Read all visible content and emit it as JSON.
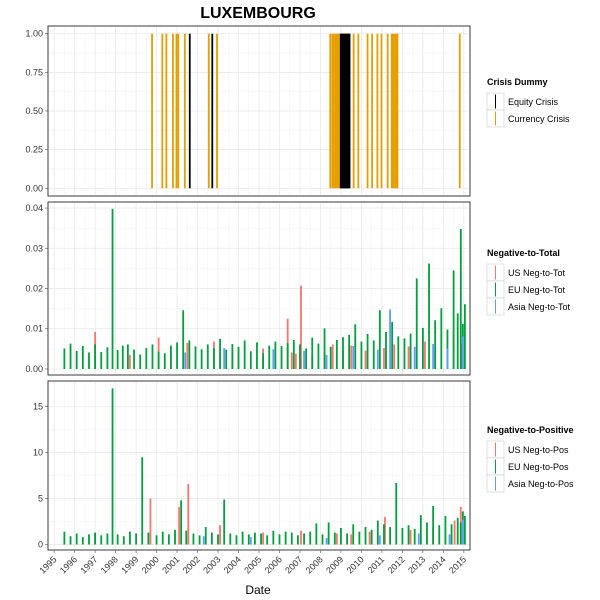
{
  "chart_data": {
    "type": "bar",
    "title": "LUXEMBOURG",
    "xlabel": "Date",
    "x_tick_labels": [
      "1995",
      "1996",
      "1997",
      "1998",
      "1999",
      "2000",
      "2001",
      "2002",
      "2003",
      "2004",
      "2005",
      "2006",
      "2007",
      "2008",
      "2009",
      "2010",
      "2011",
      "2012",
      "2013",
      "2014",
      "2015"
    ],
    "x_range": [
      1994.7,
      2015.3
    ],
    "panels": [
      {
        "legend_title": "Crisis Dummy",
        "ylim": [
          -0.05,
          1.05
        ],
        "y_ticks": [
          0,
          0.25,
          0.5,
          0.75,
          1
        ],
        "y_tick_labels": [
          "0.00",
          "0.25",
          "0.50",
          "0.75",
          "1.00"
        ],
        "series": [
          {
            "name": "Equity Crisis",
            "color": "#000000",
            "x": [
              2001.62,
              2002.72,
              2008.98,
              2009.02,
              2009.06,
              2009.1,
              2009.14,
              2009.18,
              2009.22,
              2009.26,
              2009.3,
              2009.34,
              2009.38,
              2009.42
            ],
            "values": [
              1,
              1,
              1,
              1,
              1,
              1,
              1,
              1,
              1,
              1,
              1,
              1,
              1,
              1
            ]
          },
          {
            "name": "Currency Crisis",
            "color": "#E69F00",
            "x": [
              1999.78,
              2000.28,
              2000.48,
              2000.8,
              2000.97,
              2001.06,
              2001.38,
              2002.55,
              2002.95,
              2008.48,
              2008.58,
              2008.66,
              2008.74,
              2008.82,
              2008.9,
              2009.62,
              2009.85,
              2010.3,
              2010.52,
              2010.78,
              2010.98,
              2011.28,
              2011.48,
              2011.56,
              2011.64,
              2011.7,
              2011.76,
              2014.8
            ],
            "values": [
              1,
              1,
              1,
              1,
              1,
              1,
              1,
              1,
              1,
              1,
              1,
              1,
              1,
              1,
              1,
              1,
              1,
              1,
              1,
              1,
              1,
              1,
              1,
              1,
              1,
              1,
              1,
              1
            ]
          }
        ]
      },
      {
        "legend_title": "Negative-to-Total",
        "ylim": [
          -0.0015,
          0.0415
        ],
        "y_ticks": [
          0,
          0.01,
          0.02,
          0.03,
          0.04
        ],
        "y_tick_labels": [
          "0.00",
          "0.01",
          "0.02",
          "0.03",
          "0.04"
        ],
        "series": [
          {
            "name": "US Neg-to-Tot",
            "color": "#F8766D",
            "x": [
              1997.0,
              1998.7,
              2000.1,
              2001.5,
              2002.8,
              2003.7,
              2005.2,
              2006.4,
              2006.6,
              2006.8,
              2007.05,
              2007.6,
              2008.2,
              2008.6,
              2009.1,
              2009.5,
              2010.2,
              2011.1,
              2011.6,
              2012.3,
              2013.1,
              2013.6,
              2014.5,
              2014.9
            ],
            "values": [
              0.0092,
              0.0035,
              0.0078,
              0.0065,
              0.0068,
              0.0042,
              0.0051,
              0.0125,
              0.0041,
              0.0038,
              0.0207,
              0.0035,
              0.0041,
              0.0061,
              0.0045,
              0.0058,
              0.0046,
              0.0052,
              0.0061,
              0.0056,
              0.0068,
              0.0045,
              0.0095,
              0.0063
            ]
          },
          {
            "name": "EU Neg-to-Tot",
            "color": "#00A03C",
            "x": [
              1995.5,
              1995.8,
              1996.1,
              1996.4,
              1996.7,
              1997.0,
              1997.3,
              1997.6,
              1997.85,
              1998.1,
              1998.35,
              1998.6,
              1998.9,
              1999.2,
              1999.5,
              1999.8,
              2000.1,
              2000.4,
              2000.7,
              2001.0,
              2001.3,
              2001.6,
              2001.9,
              2002.2,
              2002.5,
              2002.8,
              2003.1,
              2003.4,
              2003.7,
              2004.0,
              2004.3,
              2004.6,
              2004.9,
              2005.2,
              2005.5,
              2005.8,
              2006.1,
              2006.4,
              2006.7,
              2007.0,
              2007.3,
              2007.6,
              2007.9,
              2008.2,
              2008.5,
              2008.8,
              2009.1,
              2009.4,
              2009.7,
              2010.0,
              2010.3,
              2010.6,
              2010.9,
              2011.2,
              2011.5,
              2011.8,
              2012.1,
              2012.4,
              2012.7,
              2013.0,
              2013.3,
              2013.6,
              2013.9,
              2014.2,
              2014.5,
              2014.7,
              2014.85,
              2014.95,
              2015.05
            ],
            "values": [
              0.0051,
              0.0063,
              0.0045,
              0.0057,
              0.0041,
              0.0061,
              0.0042,
              0.0054,
              0.0398,
              0.0047,
              0.0058,
              0.0061,
              0.0048,
              0.0036,
              0.0052,
              0.0061,
              0.0043,
              0.0039,
              0.0058,
              0.0066,
              0.0146,
              0.0071,
              0.0056,
              0.0049,
              0.0061,
              0.0052,
              0.0075,
              0.0048,
              0.0062,
              0.0055,
              0.0071,
              0.0044,
              0.0066,
              0.0039,
              0.0058,
              0.0068,
              0.0057,
              0.0065,
              0.0072,
              0.0061,
              0.0051,
              0.0078,
              0.0063,
              0.0101,
              0.0055,
              0.0072,
              0.0079,
              0.0085,
              0.0111,
              0.0068,
              0.0087,
              0.0071,
              0.0146,
              0.0092,
              0.0117,
              0.0081,
              0.0076,
              0.0088,
              0.0225,
              0.0102,
              0.0262,
              0.0121,
              0.0151,
              0.0098,
              0.0245,
              0.0138,
              0.0348,
              0.0112,
              0.0161
            ]
          },
          {
            "name": "Asia Neg-to-Tot",
            "color": "#619CFF",
            "x": [
              2001.4,
              2003.3,
              2005.7,
              2007.2,
              2008.3,
              2009.6,
              2010.8,
              2011.4,
              2012.6,
              2013.5,
              2014.2,
              2014.95
            ],
            "values": [
              0.0041,
              0.0052,
              0.0049,
              0.0045,
              0.0035,
              0.0057,
              0.0048,
              0.0148,
              0.0055,
              0.0062,
              0.0051,
              0.0081
            ]
          }
        ]
      },
      {
        "legend_title": "Negative-to-Positive",
        "ylim": [
          -0.6,
          17.8
        ],
        "y_ticks": [
          0,
          5,
          10,
          15
        ],
        "y_tick_labels": [
          "0",
          "5",
          "10",
          "15"
        ],
        "series": [
          {
            "name": "US Neg-to-Pos",
            "color": "#F8766D",
            "x": [
              1997.0,
              1999.7,
              2001.1,
              2001.55,
              2003.1,
              2005.2,
              2007.05,
              2008.8,
              2009.5,
              2010.4,
              2011.15,
              2012.4,
              2013.5,
              2014.55,
              2014.85
            ],
            "values": [
              1.2,
              5.0,
              4.1,
              6.6,
              2.1,
              1.3,
              1.5,
              1.2,
              1.1,
              1.4,
              3.0,
              1.6,
              1.8,
              2.6,
              4.1
            ]
          },
          {
            "name": "EU Neg-to-Pos",
            "color": "#00A03C",
            "x": [
              1995.5,
              1995.8,
              1996.1,
              1996.4,
              1996.7,
              1997.0,
              1997.3,
              1997.6,
              1997.85,
              1998.1,
              1998.4,
              1998.7,
              1999.0,
              1999.3,
              1999.6,
              2000.0,
              2000.3,
              2000.6,
              2000.9,
              2001.2,
              2001.45,
              2001.8,
              2002.1,
              2002.4,
              2002.7,
              2003.0,
              2003.3,
              2003.6,
              2003.9,
              2004.2,
              2004.5,
              2004.8,
              2005.1,
              2005.4,
              2005.7,
              2006.0,
              2006.3,
              2006.6,
              2006.9,
              2007.2,
              2007.5,
              2007.8,
              2008.1,
              2008.4,
              2008.7,
              2009.0,
              2009.3,
              2009.6,
              2009.9,
              2010.2,
              2010.5,
              2010.8,
              2011.1,
              2011.4,
              2011.7,
              2012.0,
              2012.3,
              2012.6,
              2012.9,
              2013.2,
              2013.5,
              2013.8,
              2014.1,
              2014.4,
              2014.7,
              2014.85,
              2014.95,
              2015.05
            ],
            "values": [
              1.4,
              0.9,
              1.2,
              0.8,
              1.1,
              1.3,
              1.0,
              1.2,
              17.0,
              1.1,
              0.9,
              1.4,
              1.2,
              9.5,
              1.3,
              1.0,
              1.4,
              1.1,
              1.6,
              4.8,
              1.5,
              1.2,
              1.0,
              1.9,
              1.3,
              1.1,
              4.9,
              1.2,
              1.0,
              1.4,
              1.1,
              1.3,
              1.2,
              1.0,
              1.5,
              1.1,
              1.4,
              1.3,
              1.0,
              1.2,
              1.4,
              2.3,
              1.1,
              2.4,
              1.3,
              1.8,
              1.2,
              2.2,
              1.4,
              1.9,
              1.6,
              2.6,
              2.2,
              1.9,
              6.7,
              1.8,
              2.1,
              1.7,
              3.2,
              2.4,
              4.2,
              2.1,
              3.1,
              2.2,
              2.9,
              2.4,
              3.6,
              3.1
            ]
          },
          {
            "name": "Asia Neg-to-Pos",
            "color": "#619CFF",
            "x": [
              2002.3,
              2004.6,
              2008.3,
              2010.9,
              2012.8,
              2014.3,
              2014.95
            ],
            "values": [
              0.9,
              0.8,
              0.7,
              1.0,
              1.2,
              1.1,
              2.7
            ]
          }
        ]
      }
    ]
  }
}
